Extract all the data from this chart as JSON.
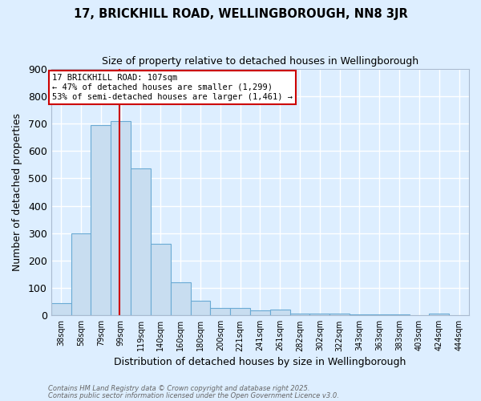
{
  "title_line1": "17, BRICKHILL ROAD, WELLINGBOROUGH, NN8 3JR",
  "title_line2": "Size of property relative to detached houses in Wellingborough",
  "xlabel": "Distribution of detached houses by size in Wellingborough",
  "ylabel": "Number of detached properties",
  "bar_labels": [
    "38sqm",
    "58sqm",
    "79sqm",
    "99sqm",
    "119sqm",
    "140sqm",
    "160sqm",
    "180sqm",
    "200sqm",
    "221sqm",
    "241sqm",
    "261sqm",
    "282sqm",
    "302sqm",
    "322sqm",
    "343sqm",
    "363sqm",
    "383sqm",
    "403sqm",
    "424sqm",
    "444sqm"
  ],
  "bar_values": [
    45,
    300,
    695,
    710,
    535,
    262,
    122,
    55,
    27,
    27,
    18,
    20,
    8,
    7,
    7,
    5,
    4,
    3,
    2,
    7,
    0
  ],
  "bar_color": "#c8ddf0",
  "bar_edge_color": "#6aaad4",
  "bg_color": "#ddeeff",
  "plot_bg_color": "#ddeeff",
  "grid_color": "#ffffff",
  "red_line_x": 3.42,
  "annotation_text": "17 BRICKHILL ROAD: 107sqm\n← 47% of detached houses are smaller (1,299)\n53% of semi-detached houses are larger (1,461) →",
  "annotation_box_color": "#ffffff",
  "annotation_border_color": "#cc0000",
  "footer_line1": "Contains HM Land Registry data © Crown copyright and database right 2025.",
  "footer_line2": "Contains public sector information licensed under the Open Government Licence v3.0.",
  "ylim": [
    0,
    900
  ],
  "yticks": [
    0,
    100,
    200,
    300,
    400,
    500,
    600,
    700,
    800,
    900
  ]
}
